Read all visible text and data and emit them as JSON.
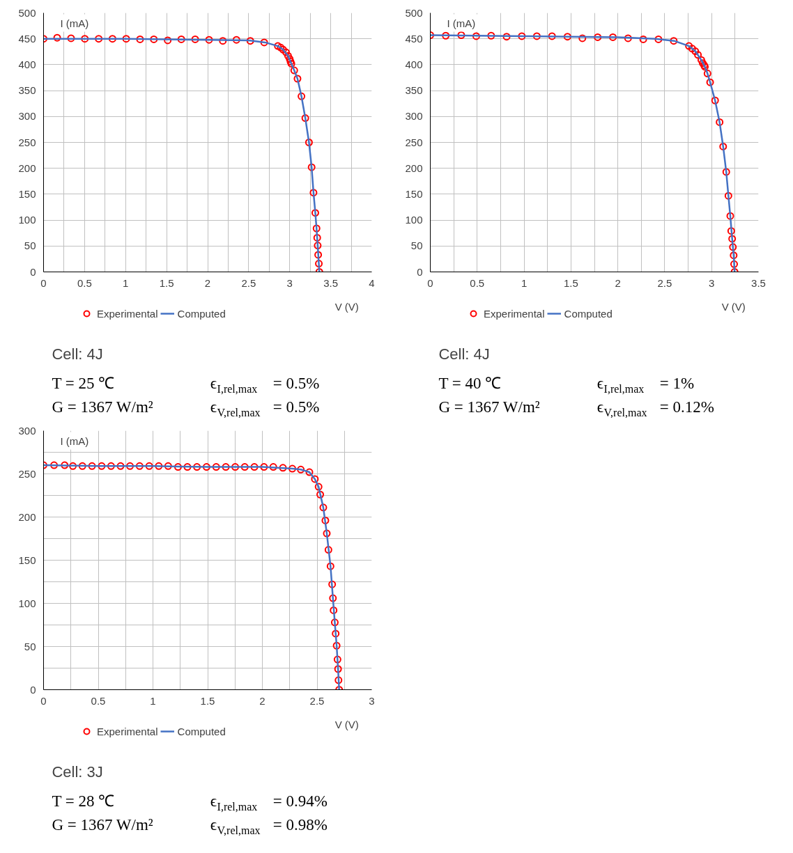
{
  "chart_data": [
    {
      "type": "scatter",
      "title": "Cell: 4J",
      "xlabel": "V (V)",
      "ylabel": "I (mA)",
      "xlim": [
        0,
        4
      ],
      "ylim": [
        0,
        500
      ],
      "xticks": [
        0,
        {
          "value": 0.25,
          "label": null
        },
        0.5,
        {
          "value": 0.75,
          "label": null
        },
        1,
        {
          "value": 1.25,
          "label": null
        },
        1.5,
        {
          "value": 1.75,
          "label": null
        },
        2,
        {
          "value": 2.25,
          "label": null
        },
        2.5,
        {
          "value": 2.75,
          "label": null
        },
        3,
        {
          "value": 3.25,
          "label": null
        },
        3.5,
        {
          "value": 3.75,
          "label": null
        },
        4
      ],
      "yticks": [
        0,
        50,
        100,
        150,
        200,
        250,
        300,
        350,
        400,
        450,
        500
      ],
      "grid": true,
      "legend": "bottom",
      "annotations": [
        "T = 25 ℃",
        "G = 1367 W/m²",
        "ϵ$_{I,rel,max}$ = 0.5%",
        "ϵ$_{V,rel,max}$ = 0.5%"
      ],
      "series": [
        {
          "name": "Experimental",
          "type": "scatter",
          "marker": "circle",
          "color": "#ff0000",
          "x": [
            0,
            0.166,
            0.335,
            0.503,
            0.672,
            0.84,
            1.007,
            1.176,
            1.344,
            1.513,
            1.679,
            1.848,
            2.017,
            2.185,
            2.351,
            2.52,
            2.689,
            2.855,
            2.89,
            2.92,
            2.955,
            2.98,
            3.0,
            3.01,
            3.02,
            3.055,
            3.095,
            3.143,
            3.19,
            3.235,
            3.267,
            3.29,
            3.312,
            3.327,
            3.335,
            3.341,
            3.347,
            3.355,
            3.361
          ],
          "values": [
            450,
            452,
            451,
            450,
            450,
            450,
            450,
            449,
            449,
            447,
            449,
            449,
            448,
            446,
            448,
            446,
            443,
            436,
            433,
            429,
            424,
            417,
            411,
            406,
            402,
            389,
            373,
            339,
            297,
            250,
            202,
            153,
            114,
            84,
            66,
            51,
            33,
            16,
            0
          ]
        },
        {
          "name": "Computed",
          "type": "line",
          "color": "#4472c4",
          "x": [
            0,
            0.5,
            1.0,
            1.5,
            2.0,
            2.5,
            2.7,
            2.855,
            2.92,
            2.98,
            3.02,
            3.055,
            3.095,
            3.143,
            3.19,
            3.235,
            3.267,
            3.29,
            3.312,
            3.327,
            3.341,
            3.355,
            3.361
          ],
          "values": [
            450,
            450,
            450,
            449,
            448,
            447,
            443,
            436,
            429,
            417,
            402,
            389,
            373,
            339,
            297,
            250,
            202,
            153,
            114,
            84,
            51,
            16,
            0
          ]
        }
      ]
    },
    {
      "type": "scatter",
      "title": "Cell: 4J",
      "xlabel": "V (V)",
      "ylabel": "I (mA)",
      "xlim": [
        0,
        3.5
      ],
      "ylim": [
        0,
        500
      ],
      "xticks": [
        0,
        {
          "value": 0.25,
          "label": null
        },
        0.5,
        {
          "value": 0.75,
          "label": null
        },
        1,
        {
          "value": 1.25,
          "label": null
        },
        1.5,
        {
          "value": 1.75,
          "label": null
        },
        2,
        {
          "value": 2.25,
          "label": null
        },
        2.5,
        {
          "value": 2.75,
          "label": null
        },
        3,
        {
          "value": 3.25,
          "label": null
        },
        3.5
      ],
      "yticks": [
        0,
        50,
        100,
        150,
        200,
        250,
        300,
        350,
        400,
        450,
        500
      ],
      "grid": true,
      "legend": "bottom",
      "annotations": [
        "T = 40 ℃",
        "G = 1367 W/m²",
        "ϵ$_{I,rel,max}$ = 1%",
        "ϵ$_{V,rel,max}$ = 0.12%"
      ],
      "series": [
        {
          "name": "Experimental",
          "type": "scatter",
          "marker": "circle",
          "color": "#ff0000",
          "x": [
            0,
            0.165,
            0.33,
            0.49,
            0.649,
            0.814,
            0.976,
            1.136,
            1.298,
            1.463,
            1.622,
            1.785,
            1.947,
            2.109,
            2.271,
            2.433,
            2.596,
            2.758,
            2.793,
            2.826,
            2.854,
            2.89,
            2.905,
            2.92,
            2.928,
            2.956,
            2.984,
            3.037,
            3.085,
            3.123,
            3.156,
            3.179,
            3.199,
            3.209,
            3.219,
            3.227,
            3.235,
            3.24,
            3.245
          ],
          "values": [
            457,
            456,
            457,
            455,
            456,
            454,
            455,
            455,
            455,
            454,
            451,
            453,
            453,
            451,
            449,
            449,
            446,
            436,
            431,
            426,
            419,
            409,
            403,
            399,
            396,
            383,
            366,
            331,
            289,
            242,
            193,
            147,
            108,
            79,
            64,
            48,
            32,
            15,
            0
          ]
        },
        {
          "name": "Computed",
          "type": "line",
          "color": "#4472c4",
          "x": [
            0,
            0.5,
            1.0,
            1.5,
            2.0,
            2.4,
            2.6,
            2.758,
            2.826,
            2.89,
            2.928,
            2.956,
            2.984,
            3.037,
            3.085,
            3.123,
            3.156,
            3.179,
            3.199,
            3.219,
            3.235,
            3.245
          ],
          "values": [
            457,
            456,
            455,
            454,
            453,
            450,
            446,
            436,
            426,
            409,
            396,
            383,
            366,
            331,
            289,
            242,
            193,
            147,
            108,
            64,
            32,
            0
          ]
        }
      ]
    },
    {
      "type": "scatter",
      "title": "Cell: 3J",
      "xlabel": "V (V)",
      "ylabel": "I (mA)",
      "xlim": [
        0,
        3
      ],
      "ylim": [
        0,
        300
      ],
      "xticks": [
        0,
        {
          "value": 0.25,
          "label": null
        },
        0.5,
        {
          "value": 0.75,
          "label": null
        },
        1,
        {
          "value": 1.25,
          "label": null
        },
        1.5,
        {
          "value": 1.75,
          "label": null
        },
        2,
        {
          "value": 2.25,
          "label": null
        },
        2.5,
        {
          "value": 2.75,
          "label": null
        },
        3
      ],
      "yticks": [
        0,
        {
          "value": 25,
          "label": null
        },
        50,
        {
          "value": 75,
          "label": null
        },
        100,
        {
          "value": 125,
          "label": null
        },
        150,
        {
          "value": 175,
          "label": null
        },
        200,
        {
          "value": 225,
          "label": null
        },
        250,
        {
          "value": 275,
          "label": null
        },
        300
      ],
      "grid": true,
      "legend": "bottom",
      "annotations": [
        "T = 28 ℃",
        "G = 1367 W/m²",
        "ϵ$_{I,rel,max}$ = 0.94%",
        "ϵ$_{V,rel,max}$ = 0.98%"
      ],
      "series": [
        {
          "name": "Experimental",
          "type": "scatter",
          "marker": "circle",
          "color": "#ff0000",
          "x": [
            0,
            0.096,
            0.193,
            0.268,
            0.355,
            0.443,
            0.531,
            0.617,
            0.704,
            0.79,
            0.878,
            0.966,
            1.053,
            1.139,
            1.229,
            1.315,
            1.402,
            1.49,
            1.578,
            1.666,
            1.752,
            1.839,
            1.927,
            2.015,
            2.1,
            2.188,
            2.274,
            2.351,
            2.43,
            2.48,
            2.514,
            2.529,
            2.557,
            2.576,
            2.589,
            2.604,
            2.623,
            2.638,
            2.645,
            2.651,
            2.662,
            2.67,
            2.679,
            2.687,
            2.692,
            2.696,
            2.702
          ],
          "values": [
            260,
            260,
            260,
            259,
            259,
            259,
            259,
            259,
            259,
            259,
            259,
            259,
            259,
            259,
            258,
            258,
            258,
            258,
            258,
            258,
            258,
            258,
            258,
            258,
            258,
            257,
            256,
            255,
            252,
            244,
            235,
            226,
            211,
            196,
            181,
            162,
            143,
            122,
            106,
            92,
            78,
            65,
            51,
            35,
            24,
            11,
            0
          ]
        },
        {
          "name": "Computed",
          "type": "line",
          "color": "#4472c4",
          "x": [
            0,
            0.5,
            1.0,
            1.5,
            2.0,
            2.274,
            2.351,
            2.43,
            2.48,
            2.514,
            2.557,
            2.589,
            2.623,
            2.645,
            2.662,
            2.679,
            2.692,
            2.702
          ],
          "values": [
            260,
            259,
            259,
            258,
            258,
            256,
            255,
            252,
            244,
            235,
            211,
            181,
            143,
            106,
            78,
            51,
            24,
            0
          ]
        }
      ]
    }
  ]
}
